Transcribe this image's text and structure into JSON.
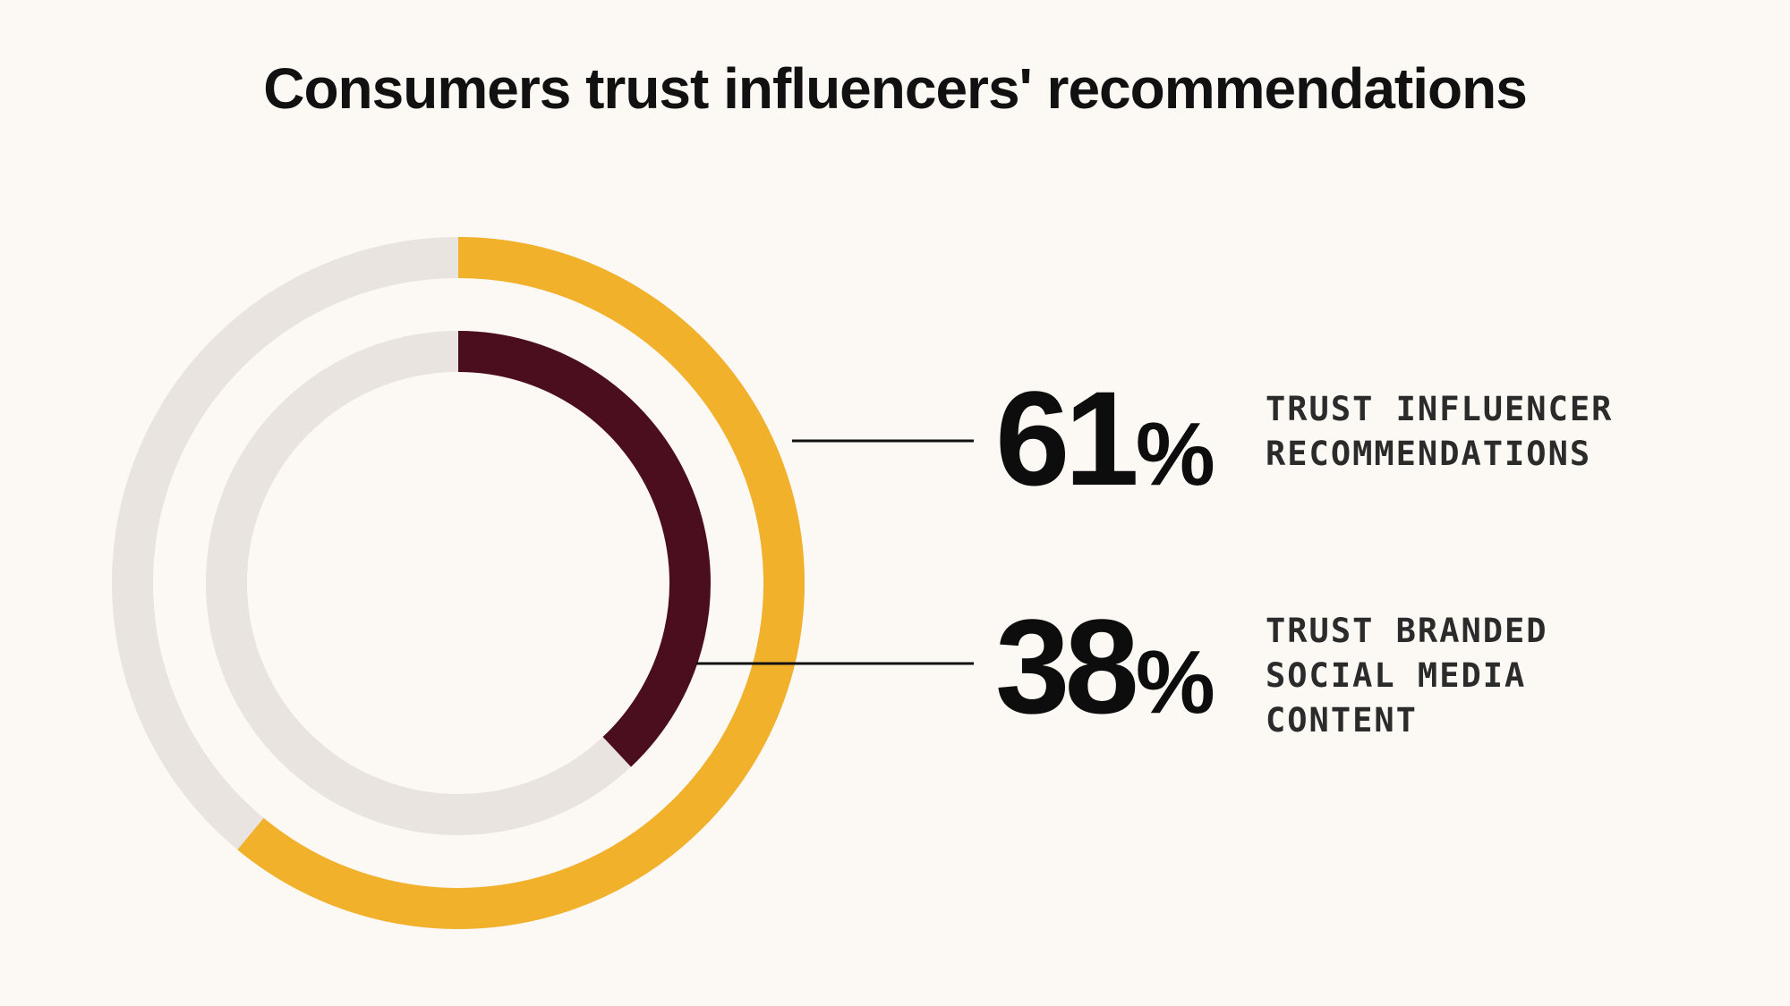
{
  "title": "Consumers trust influencers' recommendations",
  "colors": {
    "background": "#fcf8f4",
    "track": "#e9e4df",
    "outer_ring": "#f2b12b",
    "inner_ring": "#4b0e1e",
    "text": "#111111"
  },
  "stats": [
    {
      "number": "61",
      "unit": "%",
      "label": "TRUST INFLUENCER\nRECOMMENDATIONS"
    },
    {
      "number": "38",
      "unit": "%",
      "label": "TRUST BRANDED\nSOCIAL MEDIA\nCONTENT"
    }
  ],
  "chart_data": {
    "type": "radial-bar",
    "series": [
      {
        "name": "TRUST INFLUENCER RECOMMENDATIONS",
        "value": 61,
        "max": 100,
        "ring": "outer",
        "color": "#f2b12b"
      },
      {
        "name": "TRUST BRANDED SOCIAL MEDIA CONTENT",
        "value": 38,
        "max": 100,
        "ring": "inner",
        "color": "#4b0e1e"
      }
    ]
  }
}
